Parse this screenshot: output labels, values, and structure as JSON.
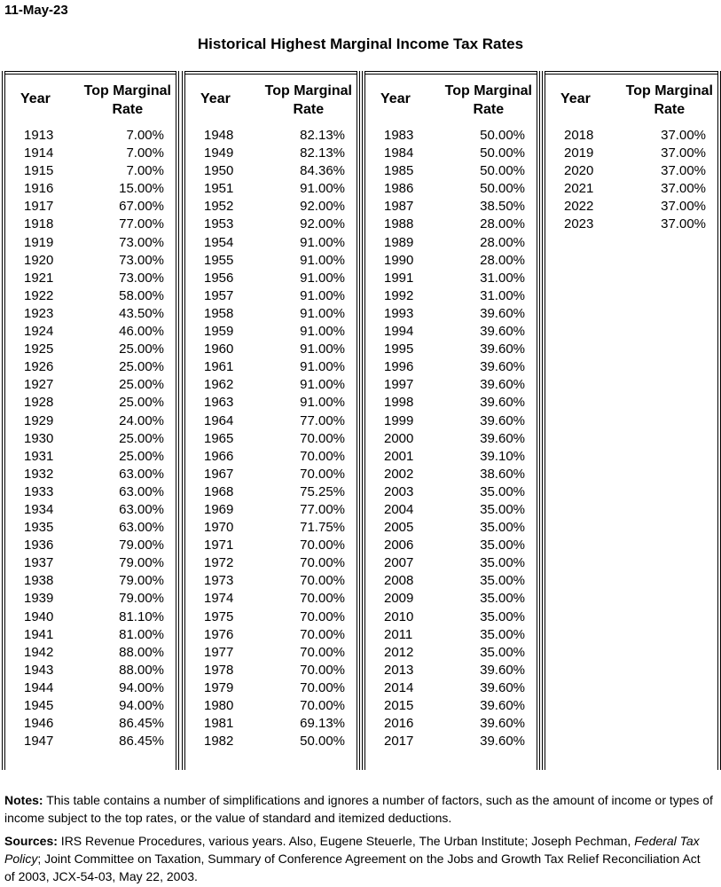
{
  "date": "11-May-23",
  "title": "Historical Highest Marginal Income Tax Rates",
  "header": {
    "year": "Year",
    "rate_line1": "Top Marginal",
    "rate_line2": "Rate"
  },
  "groups": [
    {
      "rows": [
        [
          "1913",
          "7.00%"
        ],
        [
          "1914",
          "7.00%"
        ],
        [
          "1915",
          "7.00%"
        ],
        [
          "1916",
          "15.00%"
        ],
        [
          "1917",
          "67.00%"
        ],
        [
          "1918",
          "77.00%"
        ],
        [
          "1919",
          "73.00%"
        ],
        [
          "1920",
          "73.00%"
        ],
        [
          "1921",
          "73.00%"
        ],
        [
          "1922",
          "58.00%"
        ],
        [
          "1923",
          "43.50%"
        ],
        [
          "1924",
          "46.00%"
        ],
        [
          "1925",
          "25.00%"
        ],
        [
          "1926",
          "25.00%"
        ],
        [
          "1927",
          "25.00%"
        ],
        [
          "1928",
          "25.00%"
        ],
        [
          "1929",
          "24.00%"
        ],
        [
          "1930",
          "25.00%"
        ],
        [
          "1931",
          "25.00%"
        ],
        [
          "1932",
          "63.00%"
        ],
        [
          "1933",
          "63.00%"
        ],
        [
          "1934",
          "63.00%"
        ],
        [
          "1935",
          "63.00%"
        ],
        [
          "1936",
          "79.00%"
        ],
        [
          "1937",
          "79.00%"
        ],
        [
          "1938",
          "79.00%"
        ],
        [
          "1939",
          "79.00%"
        ],
        [
          "1940",
          "81.10%"
        ],
        [
          "1941",
          "81.00%"
        ],
        [
          "1942",
          "88.00%"
        ],
        [
          "1943",
          "88.00%"
        ],
        [
          "1944",
          "94.00%"
        ],
        [
          "1945",
          "94.00%"
        ],
        [
          "1946",
          "86.45%"
        ],
        [
          "1947",
          "86.45%"
        ]
      ]
    },
    {
      "rows": [
        [
          "1948",
          "82.13%"
        ],
        [
          "1949",
          "82.13%"
        ],
        [
          "1950",
          "84.36%"
        ],
        [
          "1951",
          "91.00%"
        ],
        [
          "1952",
          "92.00%"
        ],
        [
          "1953",
          "92.00%"
        ],
        [
          "1954",
          "91.00%"
        ],
        [
          "1955",
          "91.00%"
        ],
        [
          "1956",
          "91.00%"
        ],
        [
          "1957",
          "91.00%"
        ],
        [
          "1958",
          "91.00%"
        ],
        [
          "1959",
          "91.00%"
        ],
        [
          "1960",
          "91.00%"
        ],
        [
          "1961",
          "91.00%"
        ],
        [
          "1962",
          "91.00%"
        ],
        [
          "1963",
          "91.00%"
        ],
        [
          "1964",
          "77.00%"
        ],
        [
          "1965",
          "70.00%"
        ],
        [
          "1966",
          "70.00%"
        ],
        [
          "1967",
          "70.00%"
        ],
        [
          "1968",
          "75.25%"
        ],
        [
          "1969",
          "77.00%"
        ],
        [
          "1970",
          "71.75%"
        ],
        [
          "1971",
          "70.00%"
        ],
        [
          "1972",
          "70.00%"
        ],
        [
          "1973",
          "70.00%"
        ],
        [
          "1974",
          "70.00%"
        ],
        [
          "1975",
          "70.00%"
        ],
        [
          "1976",
          "70.00%"
        ],
        [
          "1977",
          "70.00%"
        ],
        [
          "1978",
          "70.00%"
        ],
        [
          "1979",
          "70.00%"
        ],
        [
          "1980",
          "70.00%"
        ],
        [
          "1981",
          "69.13%"
        ],
        [
          "1982",
          "50.00%"
        ]
      ]
    },
    {
      "rows": [
        [
          "1983",
          "50.00%"
        ],
        [
          "1984",
          "50.00%"
        ],
        [
          "1985",
          "50.00%"
        ],
        [
          "1986",
          "50.00%"
        ],
        [
          "1987",
          "38.50%"
        ],
        [
          "1988",
          "28.00%"
        ],
        [
          "1989",
          "28.00%"
        ],
        [
          "1990",
          "28.00%"
        ],
        [
          "1991",
          "31.00%"
        ],
        [
          "1992",
          "31.00%"
        ],
        [
          "1993",
          "39.60%"
        ],
        [
          "1994",
          "39.60%"
        ],
        [
          "1995",
          "39.60%"
        ],
        [
          "1996",
          "39.60%"
        ],
        [
          "1997",
          "39.60%"
        ],
        [
          "1998",
          "39.60%"
        ],
        [
          "1999",
          "39.60%"
        ],
        [
          "2000",
          "39.60%"
        ],
        [
          "2001",
          "39.10%"
        ],
        [
          "2002",
          "38.60%"
        ],
        [
          "2003",
          "35.00%"
        ],
        [
          "2004",
          "35.00%"
        ],
        [
          "2005",
          "35.00%"
        ],
        [
          "2006",
          "35.00%"
        ],
        [
          "2007",
          "35.00%"
        ],
        [
          "2008",
          "35.00%"
        ],
        [
          "2009",
          "35.00%"
        ],
        [
          "2010",
          "35.00%"
        ],
        [
          "2011",
          "35.00%"
        ],
        [
          "2012",
          "35.00%"
        ],
        [
          "2013",
          "39.60%"
        ],
        [
          "2014",
          "39.60%"
        ],
        [
          "2015",
          "39.60%"
        ],
        [
          "2016",
          "39.60%"
        ],
        [
          "2017",
          "39.60%"
        ]
      ]
    },
    {
      "rows": [
        [
          "2018",
          "37.00%"
        ],
        [
          "2019",
          "37.00%"
        ],
        [
          "2020",
          "37.00%"
        ],
        [
          "2021",
          "37.00%"
        ],
        [
          "2022",
          "37.00%"
        ],
        [
          "2023",
          "37.00%"
        ]
      ]
    }
  ],
  "notes": {
    "label": "Notes:",
    "text": " This table contains a number of simplifications and ignores a number of factors, such as the amount of income or types of income subject to the top rates, or the value of standard and itemized deductions."
  },
  "sources": {
    "label": "Sources:",
    "text_before": " IRS Revenue Procedures, various years. Also, Eugene Steuerle, The Urban Institute; Joseph Pechman, ",
    "italic": "Federal Tax Policy",
    "text_after": "; Joint Committee on Taxation, Summary of Conference Agreement on the Jobs and Growth Tax Relief Reconciliation Act of 2003, JCX-54-03, May 22, 2003."
  }
}
